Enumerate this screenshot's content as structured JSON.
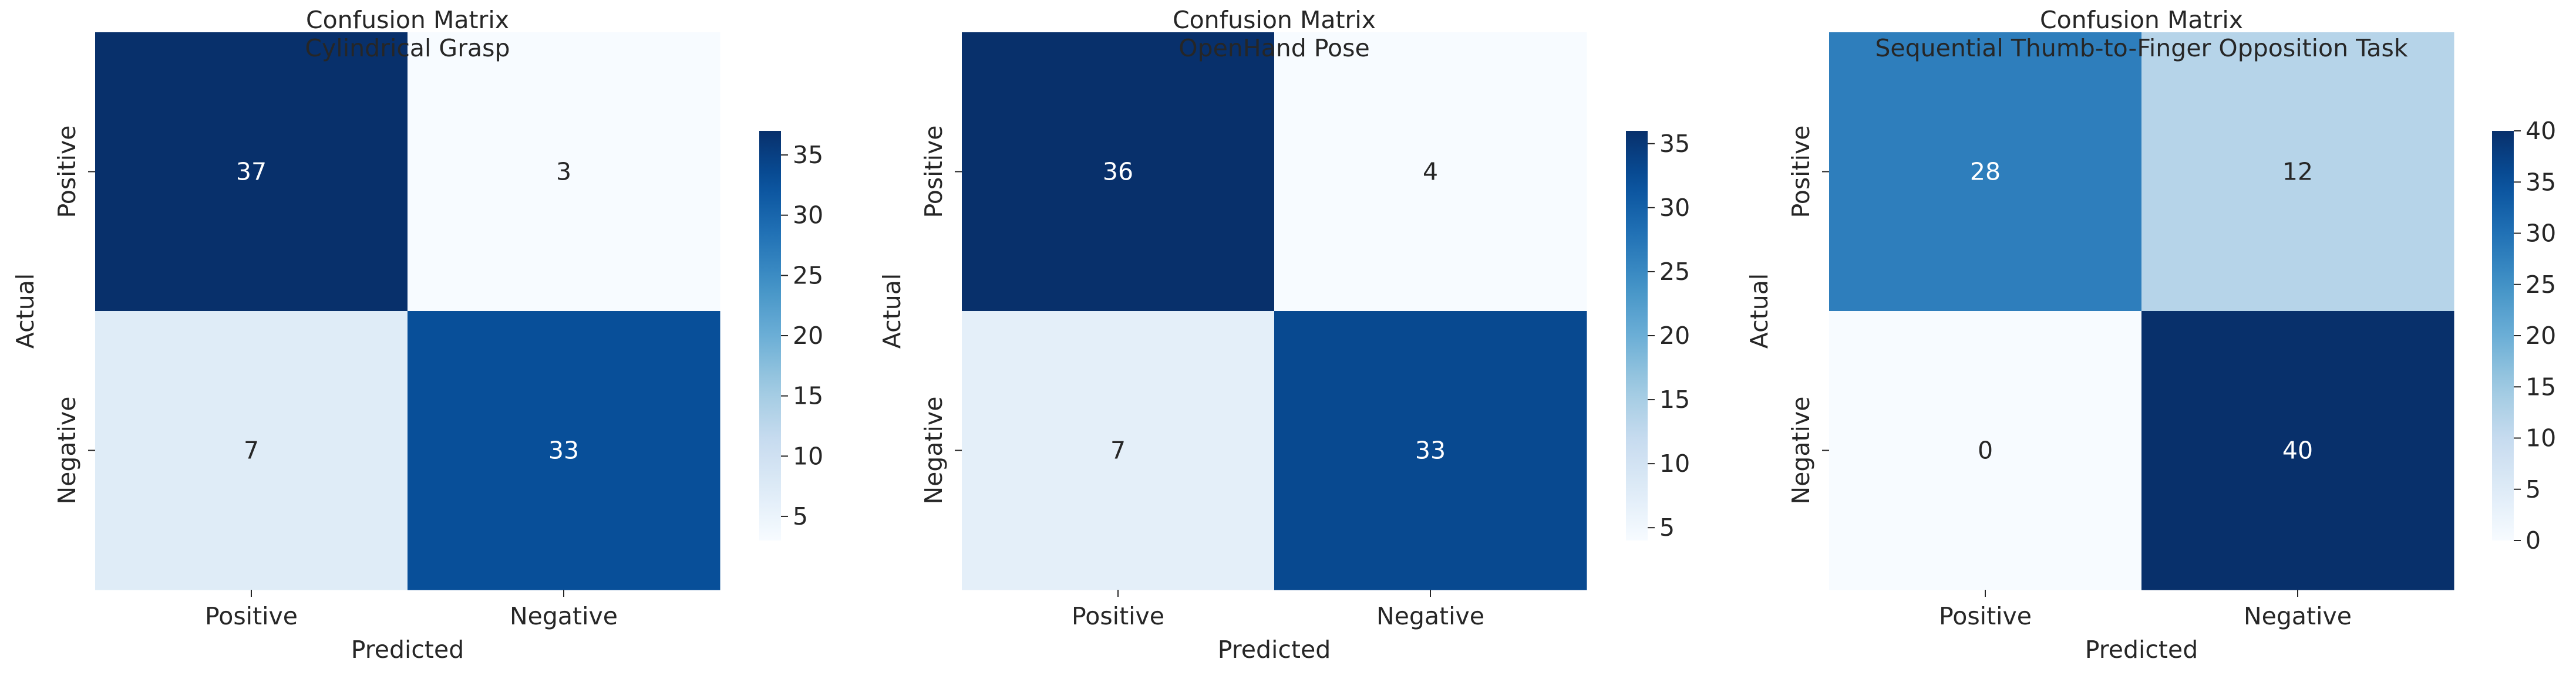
{
  "chart_data": [
    {
      "type": "heatmap",
      "title": "Confusion Matrix\nCylindrical Grasp",
      "xlabel": "Predicted",
      "ylabel": "Actual",
      "x_categories": [
        "Positive",
        "Negative"
      ],
      "y_categories": [
        "Positive",
        "Negative"
      ],
      "values": [
        [
          37,
          3
        ],
        [
          7,
          33
        ]
      ],
      "colormap": "Blues",
      "colorbar": {
        "min": 3,
        "max": 37,
        "ticks": [
          5,
          10,
          15,
          20,
          25,
          30,
          35
        ]
      }
    },
    {
      "type": "heatmap",
      "title": "Confusion Matrix\nOpenHand Pose",
      "xlabel": "Predicted",
      "ylabel": "Actual",
      "x_categories": [
        "Positive",
        "Negative"
      ],
      "y_categories": [
        "Positive",
        "Negative"
      ],
      "values": [
        [
          36,
          4
        ],
        [
          7,
          33
        ]
      ],
      "colormap": "Blues",
      "colorbar": {
        "min": 4,
        "max": 36,
        "ticks": [
          5,
          10,
          15,
          20,
          25,
          30,
          35
        ]
      }
    },
    {
      "type": "heatmap",
      "title": "Confusion Matrix\nSequential Thumb-to-Finger Opposition Task",
      "xlabel": "Predicted",
      "ylabel": "Actual",
      "x_categories": [
        "Positive",
        "Negative"
      ],
      "y_categories": [
        "Positive",
        "Negative"
      ],
      "values": [
        [
          28,
          12
        ],
        [
          0,
          40
        ]
      ],
      "colormap": "Blues",
      "colorbar": {
        "min": 0,
        "max": 40,
        "ticks": [
          0,
          5,
          10,
          15,
          20,
          25,
          30,
          35,
          40
        ]
      }
    }
  ],
  "colors": {
    "blues_scale": [
      "#f7fbff",
      "#deebf7",
      "#c6dbef",
      "#9ecae1",
      "#6baed6",
      "#4292c6",
      "#2171b5",
      "#08519c",
      "#08306b"
    ],
    "text_dark": "#262626",
    "text_light": "#ffffff"
  }
}
